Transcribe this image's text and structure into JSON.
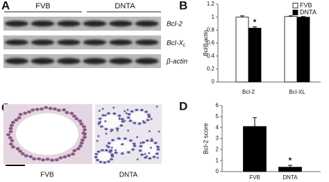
{
  "panel_labels": [
    "A",
    "B",
    "C",
    "D"
  ],
  "blot": {
    "groups": [
      "FVB",
      "DNTA"
    ],
    "rows": [
      {
        "text": "Bcl-2"
      },
      {
        "text": "Bcl-X",
        "subscript": "L"
      },
      {
        "text": "β-actin"
      }
    ]
  },
  "histology": {
    "labels": [
      "FVB",
      "DNTA"
    ]
  },
  "chart_data": [
    {
      "type": "bar",
      "y_label": "Bcl/β-actin",
      "categories": [
        "Bcl-2",
        "Bcl-XL"
      ],
      "series": [
        {
          "name": "FVB",
          "color": "#ffffff",
          "values": [
            1.0,
            1.01
          ],
          "errors": [
            0.02,
            0.01
          ]
        },
        {
          "name": "DNTA",
          "color": "#000000",
          "values": [
            0.83,
            1.0
          ],
          "errors": [
            0.02,
            0.01
          ]
        }
      ],
      "ylim": [
        0,
        1.2
      ],
      "yticks": [
        0,
        0.2,
        0.4,
        0.6,
        0.8,
        1,
        1.2
      ],
      "legend": "top-right",
      "annotations": [
        {
          "text": "*",
          "category": "Bcl-2",
          "series": "DNTA"
        }
      ]
    },
    {
      "type": "bar",
      "y_label": "Bcl-2 score",
      "categories": [
        "FVB",
        "DNTA"
      ],
      "values": [
        4.1,
        0.4
      ],
      "errors": [
        0.8,
        0.17
      ],
      "color": "#000000",
      "ylim": [
        0,
        6
      ],
      "yticks": [
        0,
        1,
        2,
        3,
        4,
        5,
        6
      ],
      "annotations": [
        {
          "text": "*",
          "category": "DNTA"
        }
      ]
    }
  ]
}
